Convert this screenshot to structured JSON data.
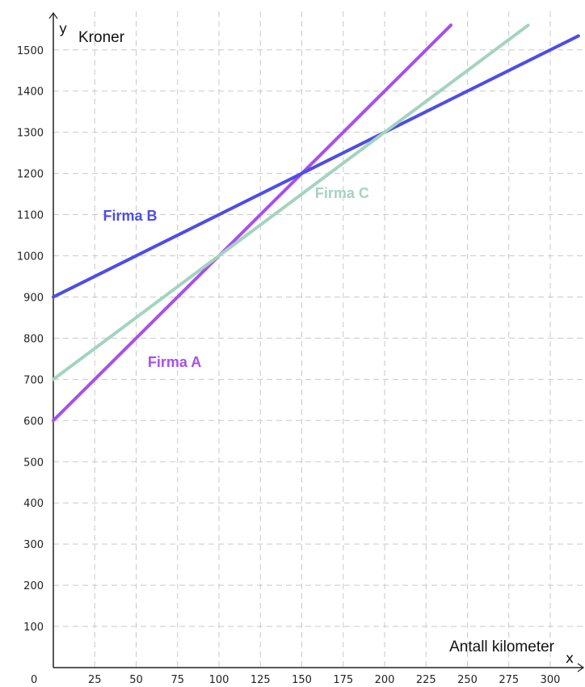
{
  "chart_data": {
    "type": "line",
    "xlabel": "Antall kilometer",
    "ylabel": "Kroner",
    "x_axis_letter": "x",
    "y_axis_letter": "y",
    "xlim": [
      0,
      317
    ],
    "ylim": [
      0,
      1560
    ],
    "x_ticks": [
      25,
      50,
      75,
      100,
      125,
      150,
      175,
      200,
      225,
      250,
      275,
      300
    ],
    "y_ticks": [
      100,
      200,
      300,
      400,
      500,
      600,
      700,
      800,
      900,
      1000,
      1100,
      1200,
      1300,
      1400,
      1500
    ],
    "origin_label": "0",
    "grid": true,
    "series": [
      {
        "name": "Firma A",
        "x": [
          0,
          100,
          150
        ],
        "y": [
          600,
          1000,
          1200
        ],
        "color": "#a84ef0"
      },
      {
        "name": "Firma B",
        "x": [
          0,
          100,
          150,
          200
        ],
        "y": [
          900,
          1100,
          1200,
          1300
        ],
        "color": "#4d4de8"
      },
      {
        "name": "Firma C",
        "x": [
          0,
          100,
          200
        ],
        "y": [
          700,
          1000,
          1300
        ],
        "color": "#a3d4bd"
      }
    ]
  }
}
